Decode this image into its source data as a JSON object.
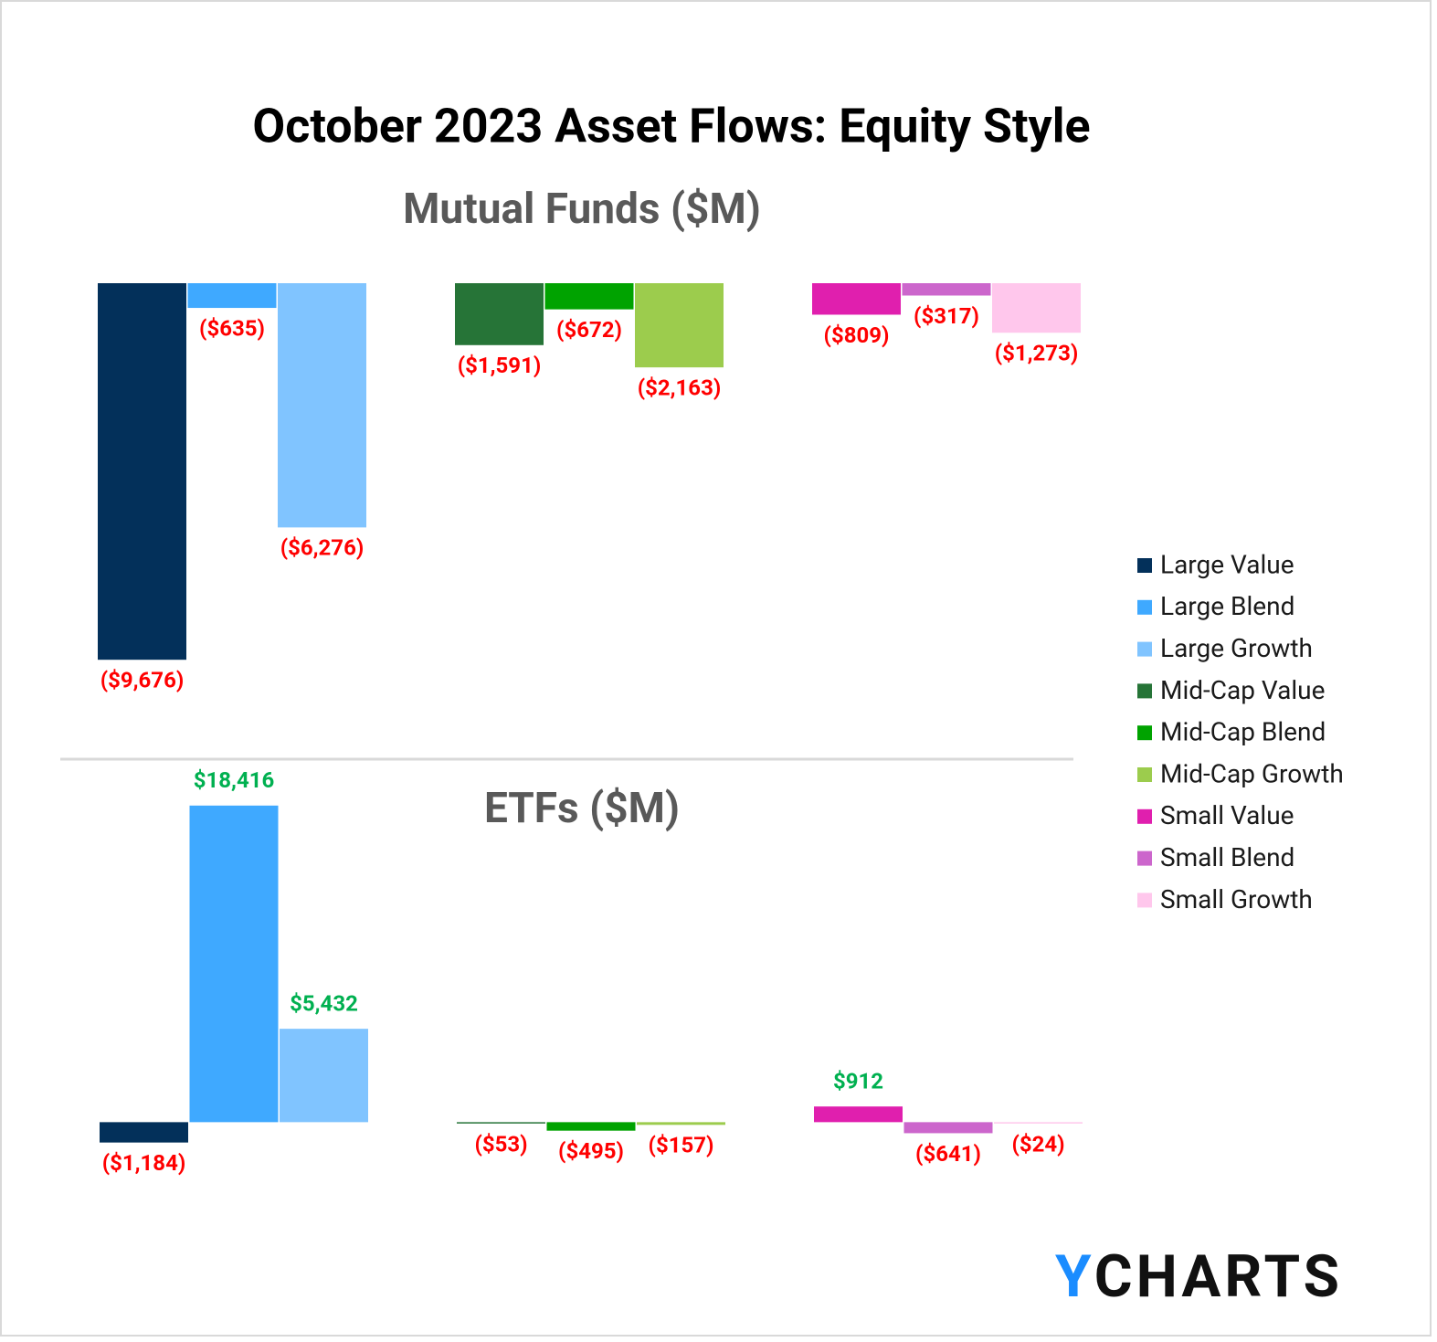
{
  "title": "October 2023 Asset Flows: Equity Style",
  "logo": {
    "mark": "Y",
    "text": "CHARTS"
  },
  "chart_data": [
    {
      "type": "bar",
      "title": "Mutual Funds ($M)",
      "ylim": [
        -10000,
        0
      ],
      "series": [
        {
          "name": "Large Value",
          "color": "#03305a",
          "values": [
            -9676
          ],
          "value_labels": [
            "($9,676)"
          ]
        },
        {
          "name": "Large Blend",
          "color": "#3fa9ff",
          "values": [
            -635
          ],
          "value_labels": [
            "($635)"
          ]
        },
        {
          "name": "Large Growth",
          "color": "#80c4ff",
          "values": [
            -6276
          ],
          "value_labels": [
            "($6,276)"
          ]
        },
        {
          "name": "Mid-Cap Value",
          "color": "#267437",
          "values": [
            -1591
          ],
          "value_labels": [
            "($1,591)"
          ]
        },
        {
          "name": "Mid-Cap Blend",
          "color": "#00a300",
          "values": [
            -672
          ],
          "value_labels": [
            "($672)"
          ]
        },
        {
          "name": "Mid-Cap Growth",
          "color": "#9ccc4d",
          "values": [
            -2163
          ],
          "value_labels": [
            "($2,163)"
          ]
        },
        {
          "name": "Small Value",
          "color": "#e01fae",
          "values": [
            -809
          ],
          "value_labels": [
            "($809)"
          ]
        },
        {
          "name": "Small Blend",
          "color": "#cc66cc",
          "values": [
            -317
          ],
          "value_labels": [
            "($317)"
          ]
        },
        {
          "name": "Small Growth",
          "color": "#ffc7ec",
          "values": [
            -1273
          ],
          "value_labels": [
            "($1,273)"
          ]
        }
      ]
    },
    {
      "type": "bar",
      "title": "ETFs ($M)",
      "ylim": [
        -2000,
        20000
      ],
      "series": [
        {
          "values": [
            -1184
          ],
          "value_labels": [
            "($1,184)"
          ]
        },
        {
          "values": [
            18416
          ],
          "value_labels": [
            "$18,416"
          ]
        },
        {
          "values": [
            5432
          ],
          "value_labels": [
            "$5,432"
          ]
        },
        {
          "values": [
            -53
          ],
          "value_labels": [
            "($53)"
          ]
        },
        {
          "values": [
            -495
          ],
          "value_labels": [
            "($495)"
          ]
        },
        {
          "values": [
            -157
          ],
          "value_labels": [
            "($157)"
          ]
        },
        {
          "values": [
            912
          ],
          "value_labels": [
            "$912"
          ]
        },
        {
          "values": [
            -641
          ],
          "value_labels": [
            "($641)"
          ]
        },
        {
          "values": [
            -24
          ],
          "value_labels": [
            "($24)"
          ]
        }
      ]
    }
  ]
}
